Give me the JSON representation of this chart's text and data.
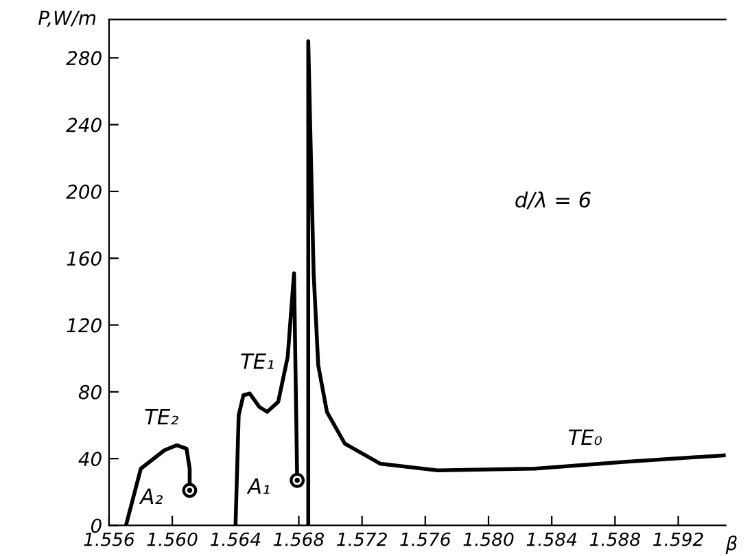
{
  "chart_data": {
    "type": "line",
    "xlabel": "β",
    "ylabel": "P,W/m",
    "xlim": [
      1.556,
      1.595
    ],
    "ylim": [
      0,
      303
    ],
    "xticks": [
      {
        "value": 1.556,
        "label": "1.556"
      },
      {
        "value": 1.56,
        "label": "1.560"
      },
      {
        "value": 1.564,
        "label": "1.564"
      },
      {
        "value": 1.568,
        "label": "1.568"
      },
      {
        "value": 1.572,
        "label": "1.572"
      },
      {
        "value": 1.576,
        "label": "1.576"
      },
      {
        "value": 1.58,
        "label": "1.580"
      },
      {
        "value": 1.584,
        "label": "1.584"
      },
      {
        "value": 1.588,
        "label": "1.588"
      },
      {
        "value": 1.592,
        "label": "1.592"
      }
    ],
    "yticks": [
      0,
      40,
      80,
      120,
      160,
      200,
      240,
      280
    ],
    "grid": false,
    "legend": false,
    "marker": "none",
    "line_style": "solid",
    "series": [
      {
        "name": "TE₂",
        "color": "#000000",
        "x": [
          1.55707,
          1.55801,
          1.5595,
          1.56028,
          1.5609,
          1.5611,
          1.5611
        ],
        "values": [
          0,
          34,
          45,
          48,
          46,
          34,
          21
        ]
      },
      {
        "name": "TE₁",
        "color": "#000000",
        "x": [
          1.564,
          1.5642,
          1.5645,
          1.5649,
          1.5655,
          1.566,
          1.5667,
          1.5673,
          1.5677,
          1.5679
        ],
        "values": [
          0,
          66,
          78,
          79,
          71,
          68,
          74,
          101,
          151,
          27
        ]
      },
      {
        "name": "TE₀",
        "color": "#000000",
        "x": [
          1.5686,
          1.5686,
          1.56894,
          1.56923,
          1.56978,
          1.57091,
          1.57314,
          1.57678,
          1.58293,
          1.58852,
          1.59495
        ],
        "values": [
          0,
          290,
          151,
          96,
          68,
          49,
          37,
          33,
          34,
          38,
          42
        ]
      },
      {
        "type": "scatter",
        "color": "#000000",
        "marker": "circle",
        "x": [
          1.5611,
          1.5679
        ],
        "values": [
          21,
          27
        ]
      }
    ],
    "annotations": [
      "A₂",
      "A₁",
      "d/λ = 6"
    ]
  }
}
